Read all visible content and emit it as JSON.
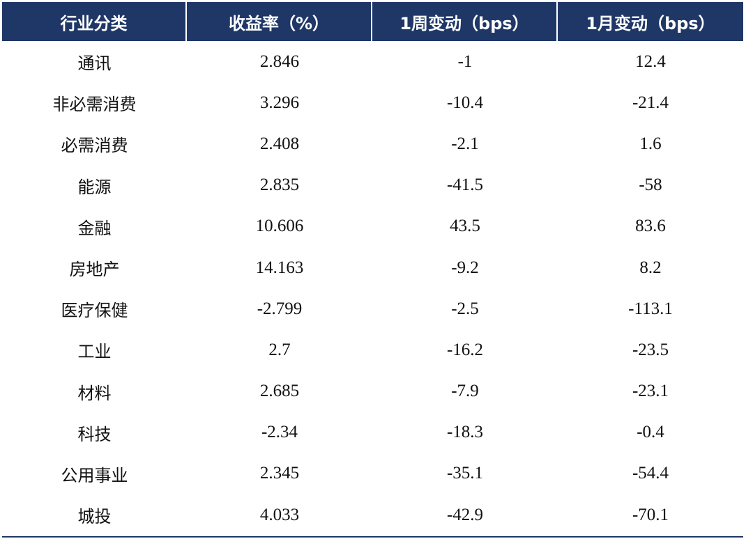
{
  "table": {
    "headers": [
      "行业分类",
      "收益率（%）",
      "1周变动（bps）",
      "1月变动（bps）"
    ],
    "rows": [
      [
        "通讯",
        "2.846",
        "-1",
        "12.4"
      ],
      [
        "非必需消费",
        "3.296",
        "-10.4",
        "-21.4"
      ],
      [
        "必需消费",
        "2.408",
        "-2.1",
        "1.6"
      ],
      [
        "能源",
        "2.835",
        "-41.5",
        "-58"
      ],
      [
        "金融",
        "10.606",
        "43.5",
        "83.6"
      ],
      [
        "房地产",
        "14.163",
        "-9.2",
        "8.2"
      ],
      [
        "医疗保健",
        "-2.799",
        "-2.5",
        "-113.1"
      ],
      [
        "工业",
        "2.7",
        "-16.2",
        "-23.5"
      ],
      [
        "材料",
        "2.685",
        "-7.9",
        "-23.1"
      ],
      [
        "科技",
        "-2.34",
        "-18.3",
        "-0.4"
      ],
      [
        "公用事业",
        "2.345",
        "-35.1",
        "-54.4"
      ],
      [
        "城投",
        "4.033",
        "-42.9",
        "-70.1"
      ]
    ]
  },
  "colors": {
    "header_bg": "#1f3767",
    "header_text": "#ffffff",
    "body_text": "#111111",
    "rule": "#1f3767"
  }
}
